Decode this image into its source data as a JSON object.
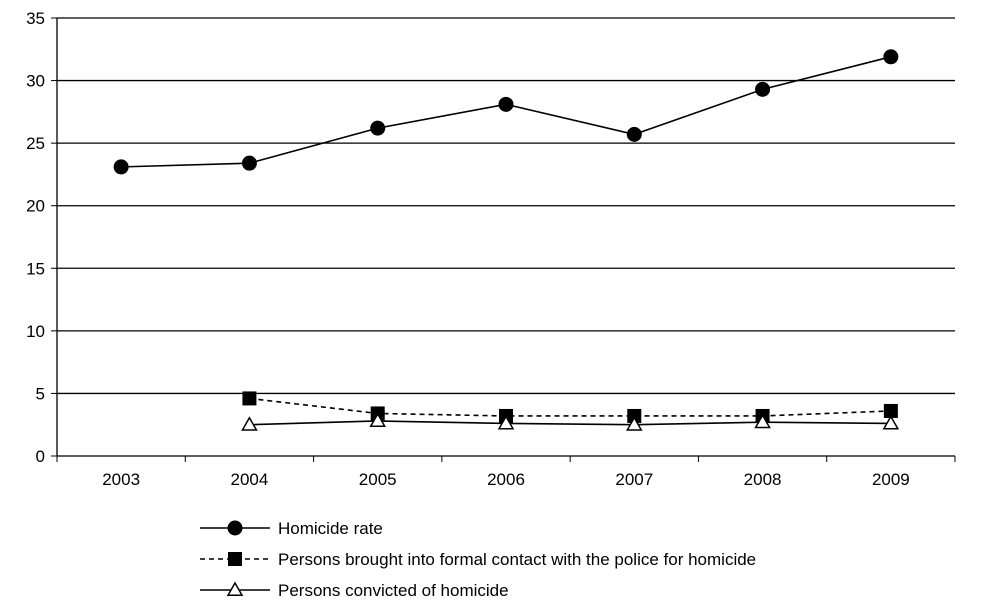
{
  "chart_data": {
    "type": "line",
    "title": "",
    "xlabel": "",
    "ylabel": "",
    "x": [
      "2003",
      "2004",
      "2005",
      "2006",
      "2007",
      "2008",
      "2009"
    ],
    "ylim": [
      0,
      35
    ],
    "yticks": [
      "0",
      "5",
      "10",
      "15",
      "20",
      "25",
      "30",
      "35"
    ],
    "grid": true,
    "legend_position": "bottom",
    "series": [
      {
        "name": "Homicide rate",
        "marker": "circle",
        "line_style": "solid",
        "values": [
          23.1,
          23.4,
          26.2,
          28.1,
          25.7,
          29.3,
          31.9
        ]
      },
      {
        "name": "Persons brought into formal contact with the police for homicide",
        "marker": "square",
        "line_style": "dashed",
        "values": [
          null,
          4.6,
          3.4,
          3.2,
          3.2,
          3.2,
          3.6
        ]
      },
      {
        "name": "Persons convicted of homicide",
        "marker": "triangle-open",
        "line_style": "solid",
        "values": [
          null,
          2.5,
          2.8,
          2.6,
          2.5,
          2.7,
          2.6
        ]
      }
    ],
    "colors": {
      "line": "#000000",
      "grid": "#000000",
      "background": "#ffffff"
    }
  }
}
